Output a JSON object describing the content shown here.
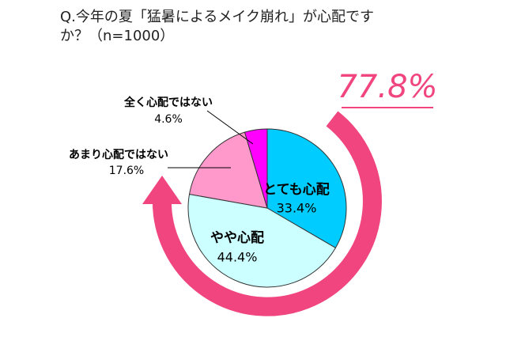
{
  "chart_data": {
    "type": "pie",
    "title": "Q.今年の夏「猛暑によるメイク崩れ」が心配ですか？（n=1000）",
    "categories": [
      "とても心配",
      "やや心配",
      "あまり心配ではない",
      "全く心配ではない"
    ],
    "values": [
      33.4,
      44.4,
      17.6,
      4.6
    ],
    "value_labels": [
      "33.4%",
      "44.4%",
      "17.6%",
      "4.6%"
    ],
    "colors": [
      "#00ccff",
      "#ccffff",
      "#ff99cc",
      "#ff00ff"
    ],
    "annotation": "77.8%"
  }
}
